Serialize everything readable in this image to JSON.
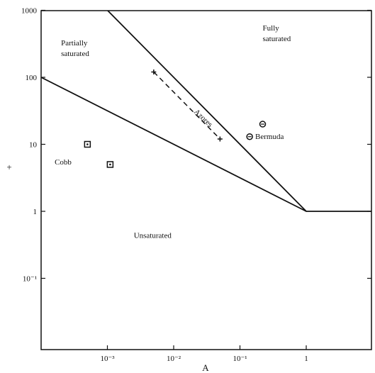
{
  "chart_data": {
    "type": "scatter",
    "title": "",
    "xlabel": "A",
    "ylabel": "+",
    "x_scale": "log",
    "y_scale": "log",
    "xlim": [
      0.0001,
      10
    ],
    "ylim": [
      0.01,
      1000
    ],
    "x_ticks": [
      {
        "value": 0.001,
        "label": "10⁻³"
      },
      {
        "value": 0.01,
        "label": "10⁻²"
      },
      {
        "value": 0.1,
        "label": "10⁻¹"
      },
      {
        "value": 1,
        "label": "1"
      }
    ],
    "y_ticks": [
      {
        "value": 1000,
        "label": "1000"
      },
      {
        "value": 100,
        "label": "100"
      },
      {
        "value": 10,
        "label": "10"
      },
      {
        "value": 1,
        "label": "1"
      },
      {
        "value": 0.1,
        "label": "10⁻¹"
      }
    ],
    "boundary_lines": [
      {
        "points": [
          [
            0.0001,
            100
          ],
          [
            1,
            1
          ]
        ]
      },
      {
        "points": [
          [
            0.001,
            1000
          ],
          [
            1,
            1
          ],
          [
            10,
            1
          ]
        ]
      }
    ],
    "regions": [
      {
        "label_lines": [
          "Partially",
          "saturated"
        ],
        "x": 0.0002,
        "y": 300
      },
      {
        "label_lines": [
          "Fully",
          "saturated"
        ],
        "x": 0.22,
        "y": 500
      },
      {
        "label_lines": [
          "Unsaturated"
        ],
        "x": 0.0025,
        "y": 0.4
      }
    ],
    "sites": [
      {
        "label": "Cobb",
        "label_x": 0.00016,
        "label_y": 5,
        "points": [
          {
            "x": 0.0005,
            "y": 10
          },
          {
            "x": 0.0011,
            "y": 5
          }
        ],
        "marker": "square"
      },
      {
        "label": "Bermuda",
        "label_x": 0.17,
        "label_y": 12,
        "points": [
          {
            "x": 0.22,
            "y": 20
          },
          {
            "x": 0.14,
            "y": 13
          }
        ],
        "marker": "circle"
      },
      {
        "label": "Azores",
        "label_x": 0.02,
        "label_y": 30,
        "points": [
          {
            "x": 0.005,
            "y": 120
          },
          {
            "x": 0.05,
            "y": 12
          }
        ],
        "marker": "cross",
        "line": "dashed"
      }
    ]
  }
}
